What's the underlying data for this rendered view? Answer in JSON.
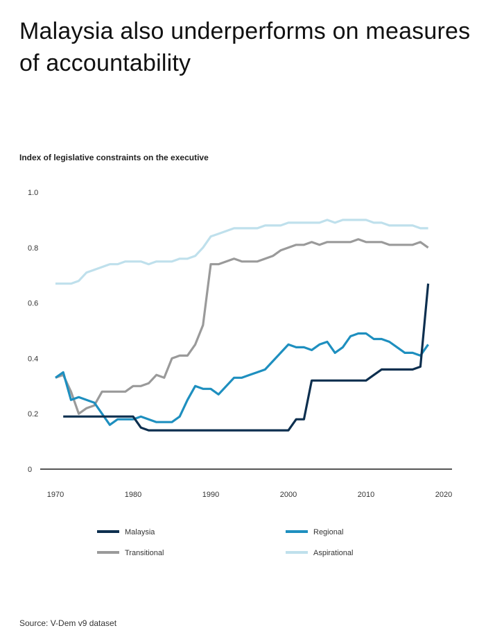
{
  "title": "Malaysia also underperforms on measures of accountability",
  "source": "Source: V-Dem v9 dataset",
  "chart_data": {
    "type": "line",
    "title": "Malaysia also underperforms on measures of accountability",
    "ylabel": "Index of legislative constraints on the executive",
    "xlabel": "",
    "xlim": [
      1970,
      2020
    ],
    "ylim": [
      0,
      1.0
    ],
    "x_ticks": [
      1970,
      1980,
      1990,
      2000,
      2010,
      2020
    ],
    "y_ticks": [
      0,
      0.2,
      0.4,
      0.6,
      0.8,
      1.0
    ],
    "y_tick_labels": [
      "0",
      "0.2",
      "0.4",
      "0.6",
      "0.8",
      "1.0"
    ],
    "grid": false,
    "series": [
      {
        "name": "Aspirational",
        "color": "#bfe0ec",
        "x": [
          1970,
          1971,
          1972,
          1973,
          1974,
          1975,
          1976,
          1977,
          1978,
          1979,
          1980,
          1981,
          1982,
          1983,
          1984,
          1985,
          1986,
          1987,
          1988,
          1989,
          1990,
          1991,
          1992,
          1993,
          1994,
          1995,
          1996,
          1997,
          1998,
          1999,
          2000,
          2001,
          2002,
          2003,
          2004,
          2005,
          2006,
          2007,
          2008,
          2009,
          2010,
          2011,
          2012,
          2013,
          2014,
          2015,
          2016,
          2017,
          2018
        ],
        "values": [
          0.67,
          0.67,
          0.67,
          0.68,
          0.71,
          0.72,
          0.73,
          0.74,
          0.74,
          0.75,
          0.75,
          0.75,
          0.74,
          0.75,
          0.75,
          0.75,
          0.76,
          0.76,
          0.77,
          0.8,
          0.84,
          0.85,
          0.86,
          0.87,
          0.87,
          0.87,
          0.87,
          0.88,
          0.88,
          0.88,
          0.89,
          0.89,
          0.89,
          0.89,
          0.89,
          0.9,
          0.89,
          0.9,
          0.9,
          0.9,
          0.9,
          0.89,
          0.89,
          0.88,
          0.88,
          0.88,
          0.88,
          0.87,
          0.87
        ]
      },
      {
        "name": "Transitional",
        "color": "#9a9a9a",
        "x": [
          1970,
          1971,
          1972,
          1973,
          1974,
          1975,
          1976,
          1977,
          1978,
          1979,
          1980,
          1981,
          1982,
          1983,
          1984,
          1985,
          1986,
          1987,
          1988,
          1989,
          1990,
          1991,
          1992,
          1993,
          1994,
          1995,
          1996,
          1997,
          1998,
          1999,
          2000,
          2001,
          2002,
          2003,
          2004,
          2005,
          2006,
          2007,
          2008,
          2009,
          2010,
          2011,
          2012,
          2013,
          2014,
          2015,
          2016,
          2017,
          2018
        ],
        "values": [
          0.33,
          0.34,
          0.28,
          0.2,
          0.22,
          0.23,
          0.28,
          0.28,
          0.28,
          0.28,
          0.3,
          0.3,
          0.31,
          0.34,
          0.33,
          0.4,
          0.41,
          0.41,
          0.45,
          0.52,
          0.74,
          0.74,
          0.75,
          0.76,
          0.75,
          0.75,
          0.75,
          0.76,
          0.77,
          0.79,
          0.8,
          0.81,
          0.81,
          0.82,
          0.81,
          0.82,
          0.82,
          0.82,
          0.82,
          0.83,
          0.82,
          0.82,
          0.82,
          0.81,
          0.81,
          0.81,
          0.81,
          0.82,
          0.8
        ]
      },
      {
        "name": "Regional",
        "color": "#1e8fbf",
        "x": [
          1970,
          1971,
          1972,
          1973,
          1974,
          1975,
          1976,
          1977,
          1978,
          1979,
          1980,
          1981,
          1982,
          1983,
          1984,
          1985,
          1986,
          1987,
          1988,
          1989,
          1990,
          1991,
          1992,
          1993,
          1994,
          1995,
          1996,
          1997,
          1998,
          1999,
          2000,
          2001,
          2002,
          2003,
          2004,
          2005,
          2006,
          2007,
          2008,
          2009,
          2010,
          2011,
          2012,
          2013,
          2014,
          2015,
          2016,
          2017,
          2018
        ],
        "values": [
          0.33,
          0.35,
          0.25,
          0.26,
          0.25,
          0.24,
          0.2,
          0.16,
          0.18,
          0.18,
          0.18,
          0.19,
          0.18,
          0.17,
          0.17,
          0.17,
          0.19,
          0.25,
          0.3,
          0.29,
          0.29,
          0.27,
          0.3,
          0.33,
          0.33,
          0.34,
          0.35,
          0.36,
          0.39,
          0.42,
          0.45,
          0.44,
          0.44,
          0.43,
          0.45,
          0.46,
          0.42,
          0.44,
          0.48,
          0.49,
          0.49,
          0.47,
          0.47,
          0.46,
          0.44,
          0.42,
          0.42,
          0.41,
          0.45
        ]
      },
      {
        "name": "Malaysia",
        "color": "#0d2f4f",
        "x": [
          1970,
          1971,
          1972,
          1973,
          1974,
          1975,
          1976,
          1977,
          1978,
          1979,
          1980,
          1981,
          1982,
          1983,
          1984,
          1985,
          1986,
          1987,
          1988,
          1989,
          1990,
          1991,
          1992,
          1993,
          1994,
          1995,
          1996,
          1997,
          1998,
          1999,
          2000,
          2001,
          2002,
          2003,
          2004,
          2005,
          2006,
          2007,
          2008,
          2009,
          2010,
          2011,
          2012,
          2013,
          2014,
          2015,
          2016,
          2017,
          2018
        ],
        "values": [
          null,
          0.19,
          0.19,
          0.19,
          0.19,
          0.19,
          0.19,
          0.19,
          0.19,
          0.19,
          0.19,
          0.15,
          0.14,
          0.14,
          0.14,
          0.14,
          0.14,
          0.14,
          0.14,
          0.14,
          0.14,
          0.14,
          0.14,
          0.14,
          0.14,
          0.14,
          0.14,
          0.14,
          0.14,
          0.14,
          0.14,
          0.18,
          0.18,
          0.32,
          0.32,
          0.32,
          0.32,
          0.32,
          0.32,
          0.32,
          0.32,
          0.34,
          0.36,
          0.36,
          0.36,
          0.36,
          0.36,
          0.37,
          0.67
        ]
      }
    ],
    "legend": [
      {
        "name": "Malaysia",
        "color": "#0d2f4f",
        "position": "left"
      },
      {
        "name": "Regional",
        "color": "#1e8fbf",
        "position": "right"
      },
      {
        "name": "Transitional",
        "color": "#9a9a9a",
        "position": "left"
      },
      {
        "name": "Aspirational",
        "color": "#bfe0ec",
        "position": "right"
      }
    ],
    "legend_placement": "bottom"
  }
}
